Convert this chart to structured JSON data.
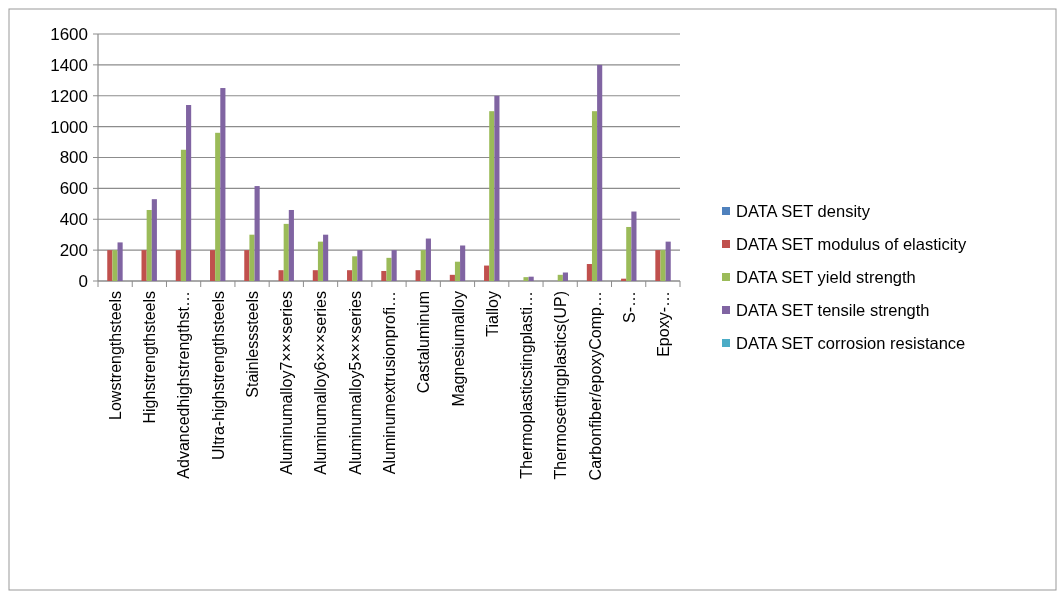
{
  "chart_data": {
    "type": "bar",
    "categories": [
      "Lowstrengthsteels",
      "Highstrengthsteels",
      "Advancedhighstrengthst…",
      "Ultra-highstrengthsteels",
      "Stainlesssteels",
      "Aluminumalloy7×××series",
      "Aluminumalloy6×××series",
      "Aluminumalloy5×××series",
      "Aluminumextrusionprofi…",
      "Castaluminum",
      "Magnesiumalloy",
      "Tialloy",
      "Thermoplasticstingplasti…",
      "Thermosettingplastics(UP)",
      "Carbonfiber/epoxyComp…",
      "S-…",
      "Epoxy-…"
    ],
    "series": [
      {
        "name": "DATA SET density",
        "color": "#4f81bd",
        "values": [
          null,
          null,
          null,
          null,
          null,
          null,
          null,
          null,
          null,
          null,
          null,
          null,
          null,
          null,
          null,
          null,
          null
        ]
      },
      {
        "name": "DATA SET modulus of elasticity",
        "color": "#c0504d",
        "values": [
          200,
          200,
          200,
          200,
          200,
          70,
          70,
          70,
          65,
          70,
          40,
          100,
          null,
          null,
          110,
          15,
          200
        ]
      },
      {
        "name": "DATA SET yield strength",
        "color": "#9bbb59",
        "values": [
          200,
          460,
          850,
          960,
          300,
          370,
          255,
          160,
          150,
          200,
          125,
          1100,
          25,
          40,
          1100,
          350,
          200
        ]
      },
      {
        "name": "DATA SET tensile strength",
        "color": "#8064a2",
        "values": [
          250,
          530,
          1140,
          1250,
          615,
          460,
          300,
          200,
          200,
          275,
          230,
          1200,
          28,
          55,
          1400,
          450,
          255
        ]
      },
      {
        "name": "DATA SET corrosion resistance",
        "color": "#4bacc6",
        "values": [
          null,
          null,
          null,
          null,
          null,
          null,
          null,
          null,
          null,
          null,
          null,
          null,
          null,
          null,
          null,
          null,
          null
        ]
      }
    ],
    "ylim": [
      0,
      1600
    ],
    "yticks": [
      0,
      200,
      400,
      600,
      800,
      1000,
      1200,
      1400,
      1600
    ],
    "grid": "y",
    "legend": "right"
  }
}
